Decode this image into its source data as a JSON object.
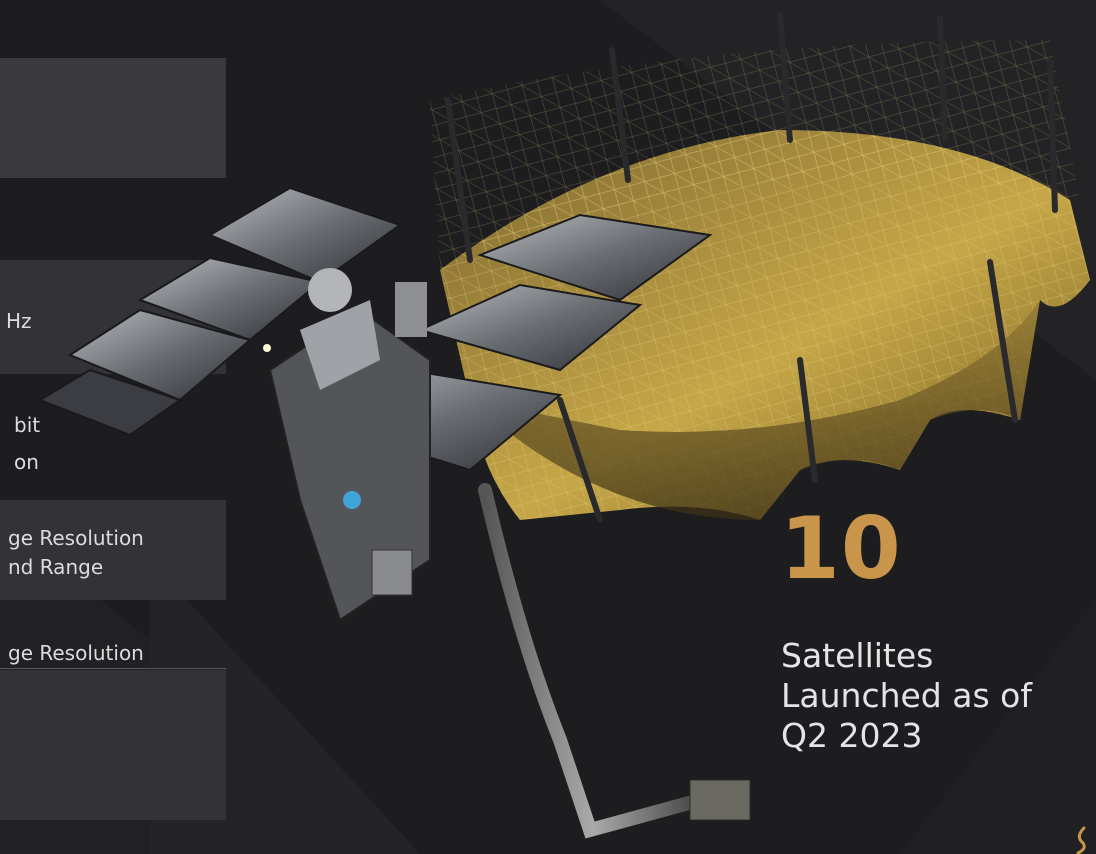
{
  "left_panel": {
    "fragments": [
      {
        "id": "freq",
        "text": "Hz"
      },
      {
        "id": "orbit_1",
        "text": "bit"
      },
      {
        "id": "orbit_2",
        "text": "on"
      },
      {
        "id": "res_1",
        "text": "ge Resolution"
      },
      {
        "id": "res_2",
        "text": "nd Range"
      },
      {
        "id": "res_3",
        "text": "ge Resolution"
      }
    ]
  },
  "stat": {
    "number": "10",
    "caption_lines": [
      "Satellites",
      "Launched as of",
      "Q2 2023"
    ]
  },
  "colors": {
    "background": "#1d1d1f",
    "accent_gold": "#c9954a",
    "panel": "#3a3a3d",
    "text": "#e4e4e6"
  },
  "icons": {
    "satellite": "satellite-illustration",
    "corner_logo": "gold-swirl-logo-icon"
  }
}
